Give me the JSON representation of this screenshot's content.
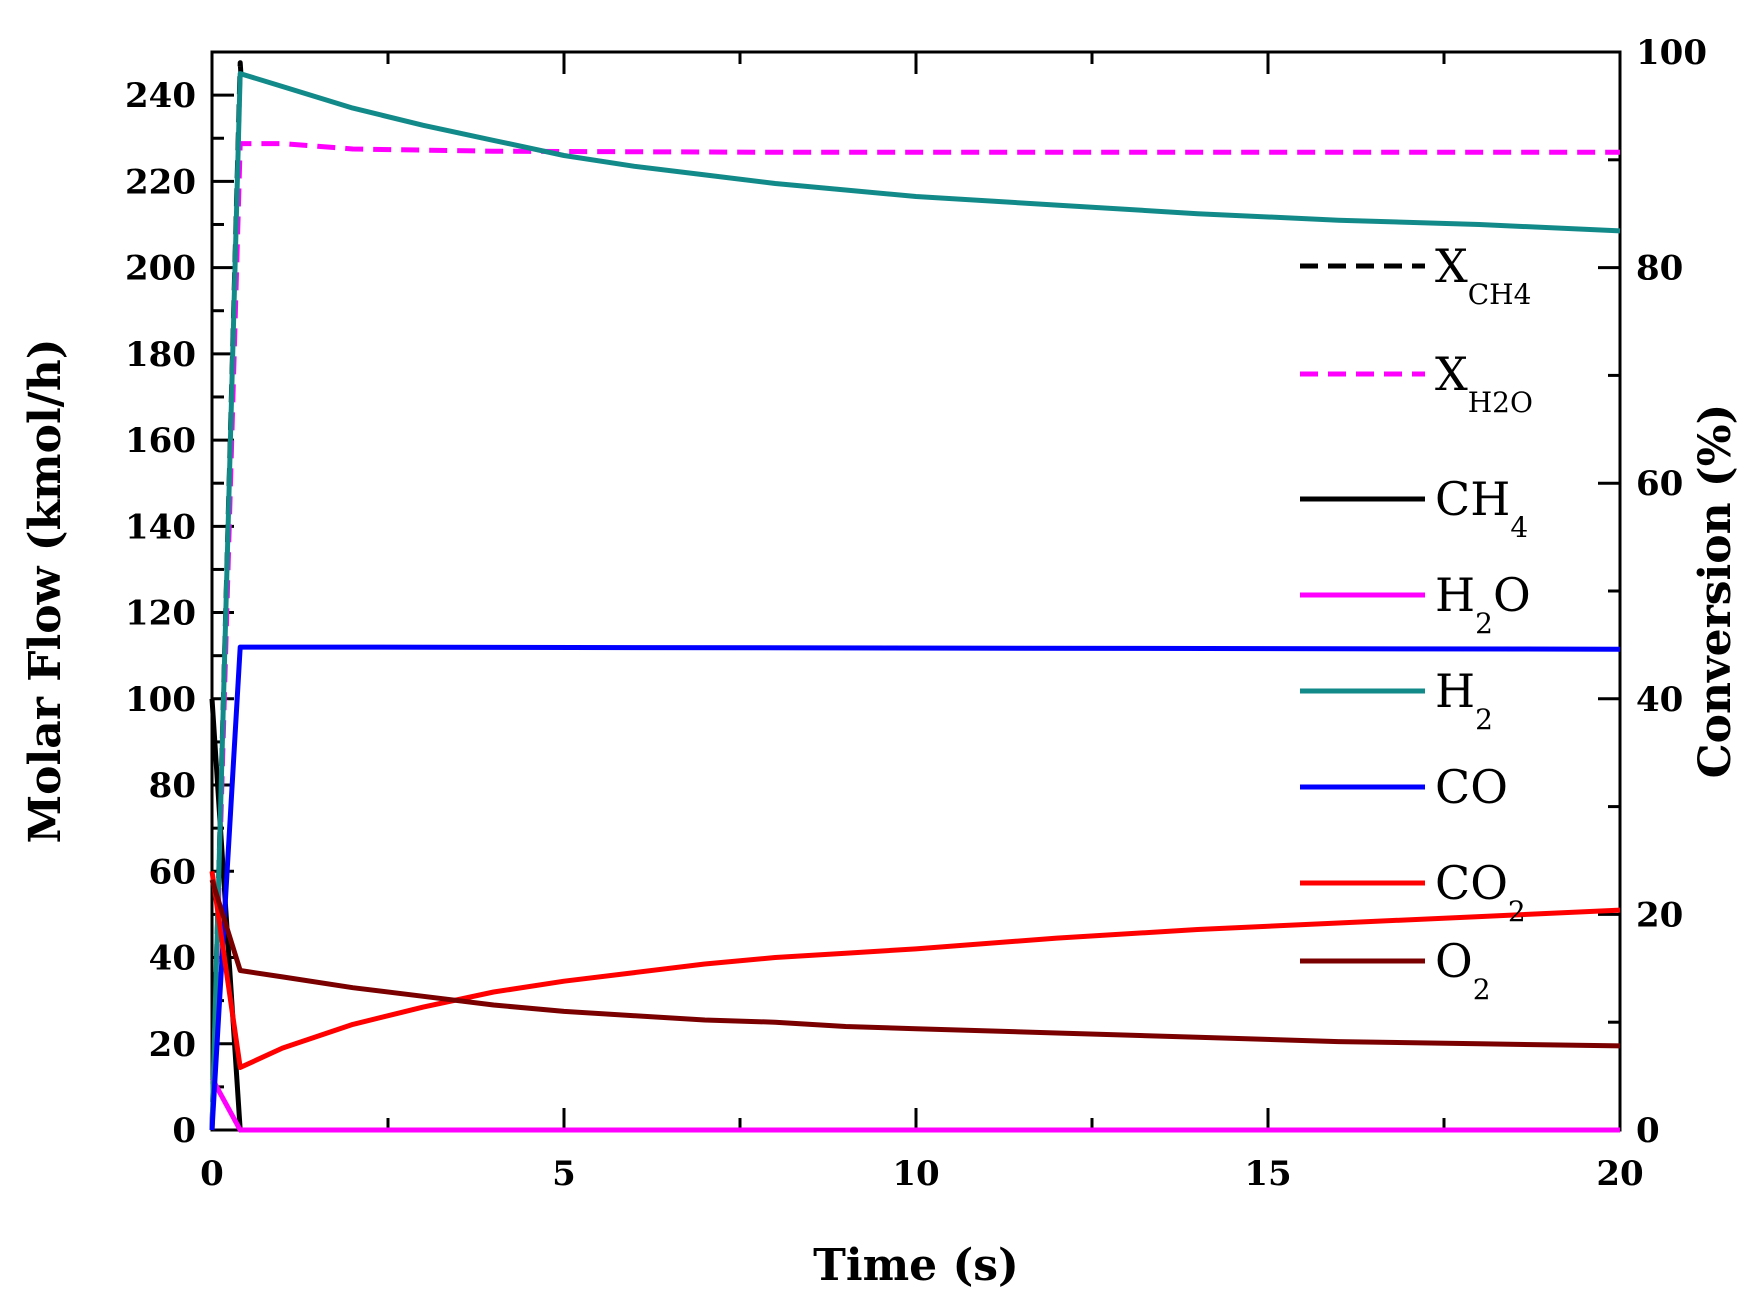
{
  "chart_data": {
    "type": "line",
    "title": "",
    "xlabel": "Time (s)",
    "ylabel": "Molar Flow (kmol/h)",
    "y2label": "Conversion (%)",
    "xlim": [
      0,
      20
    ],
    "ylim": [
      0,
      250
    ],
    "y2lim": [
      0,
      100
    ],
    "x_ticks": [
      "0",
      "5",
      "10",
      "15",
      "20"
    ],
    "y_ticks": [
      "0",
      "20",
      "40",
      "60",
      "80",
      "100",
      "120",
      "140",
      "160",
      "180",
      "200",
      "220",
      "240"
    ],
    "y2_ticks": [
      "0",
      "20",
      "40",
      "60",
      "80",
      "100"
    ],
    "grid": false,
    "legend_position": "right",
    "series": [
      {
        "name": "X",
        "sub": "CH4",
        "axis": "right",
        "color": "#000000",
        "dash": true,
        "points": [
          [
            0,
            0
          ],
          [
            0.4,
            99
          ],
          [
            0.42,
            97
          ]
        ]
      },
      {
        "name": "X",
        "sub": "H2O",
        "axis": "right",
        "color": "#ff00ff",
        "dash": true,
        "points": [
          [
            0,
            0
          ],
          [
            0.4,
            91.5
          ],
          [
            1,
            91.5
          ],
          [
            2,
            91
          ],
          [
            4,
            90.8
          ],
          [
            8,
            90.7
          ],
          [
            12,
            90.7
          ],
          [
            16,
            90.7
          ],
          [
            20,
            90.7
          ]
        ]
      },
      {
        "name": "CH",
        "sub": "4",
        "axis": "left",
        "color": "#000000",
        "dash": false,
        "points": [
          [
            0,
            100
          ],
          [
            0.4,
            0
          ],
          [
            20,
            0
          ]
        ]
      },
      {
        "name": "H",
        "sub": "2",
        "post": "O",
        "axis": "left",
        "color": "#ff00ff",
        "dash": false,
        "points": [
          [
            0,
            12
          ],
          [
            0.4,
            0
          ],
          [
            20,
            0
          ]
        ]
      },
      {
        "name": "H",
        "sub": "2",
        "axis": "left",
        "color": "#138a8a",
        "dash": false,
        "points": [
          [
            0,
            0
          ],
          [
            0.4,
            245
          ],
          [
            1,
            242
          ],
          [
            2,
            237
          ],
          [
            3,
            233
          ],
          [
            4,
            229.5
          ],
          [
            5,
            226
          ],
          [
            6,
            223.5
          ],
          [
            7,
            221.5
          ],
          [
            8,
            219.5
          ],
          [
            9,
            218
          ],
          [
            10,
            216.5
          ],
          [
            12,
            214.5
          ],
          [
            14,
            212.5
          ],
          [
            16,
            211
          ],
          [
            18,
            210
          ],
          [
            20,
            208.5
          ]
        ]
      },
      {
        "name": "CO",
        "axis": "left",
        "color": "#0000ff",
        "dash": false,
        "points": [
          [
            0,
            0
          ],
          [
            0.4,
            112
          ],
          [
            2,
            112
          ],
          [
            20,
            111.5
          ]
        ]
      },
      {
        "name": "CO",
        "sub": "2",
        "axis": "left",
        "color": "#ff0000",
        "dash": false,
        "points": [
          [
            0,
            60
          ],
          [
            0.4,
            14.5
          ],
          [
            1,
            19
          ],
          [
            2,
            24.5
          ],
          [
            3,
            28.5
          ],
          [
            4,
            32
          ],
          [
            5,
            34.5
          ],
          [
            6,
            36.5
          ],
          [
            7,
            38.5
          ],
          [
            8,
            40
          ],
          [
            9,
            41
          ],
          [
            10,
            42
          ],
          [
            12,
            44.5
          ],
          [
            14,
            46.5
          ],
          [
            16,
            48
          ],
          [
            18,
            49.5
          ],
          [
            20,
            51
          ]
        ]
      },
      {
        "name": "O",
        "sub": "2",
        "axis": "left",
        "color": "#7a0000",
        "dash": false,
        "points": [
          [
            0,
            58
          ],
          [
            0.4,
            37
          ],
          [
            1,
            35.5
          ],
          [
            2,
            33
          ],
          [
            3,
            31
          ],
          [
            4,
            29
          ],
          [
            5,
            27.5
          ],
          [
            6,
            26.5
          ],
          [
            7,
            25.5
          ],
          [
            8,
            25
          ],
          [
            9,
            24
          ],
          [
            10,
            23.5
          ],
          [
            12,
            22.5
          ],
          [
            14,
            21.5
          ],
          [
            16,
            20.5
          ],
          [
            18,
            20
          ],
          [
            20,
            19.5
          ]
        ]
      }
    ]
  }
}
